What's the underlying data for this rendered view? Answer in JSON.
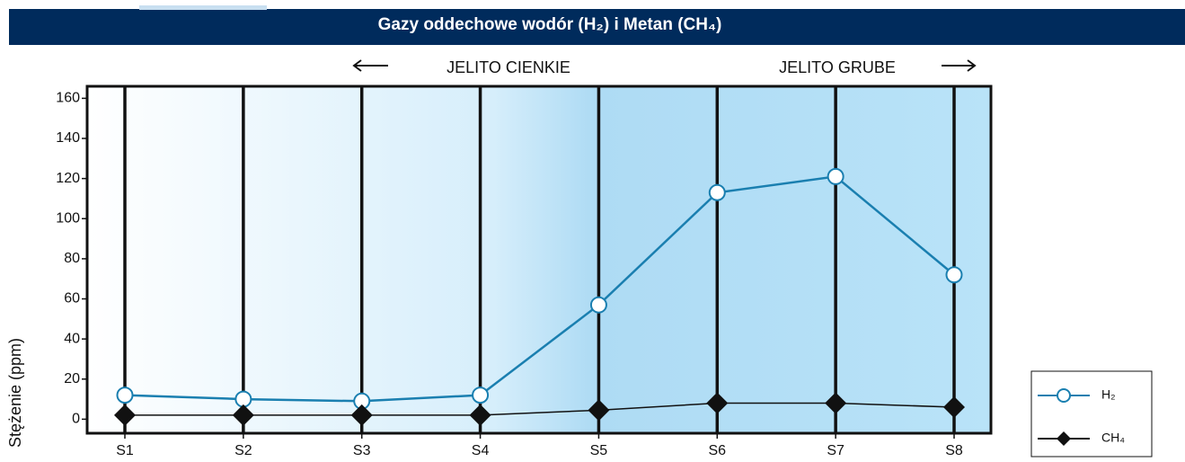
{
  "chart_data": {
    "type": "line",
    "title": "Gazy oddechowe wodór (H₂) i Metan (CH₄)",
    "y_label": "Stężenie (ppm)",
    "annotations": [
      "JELITO CIENKIE",
      "JELITO GRUBE"
    ],
    "categories": [
      "S1",
      "S2",
      "S3",
      "S4",
      "S5",
      "S6",
      "S7",
      "S8"
    ],
    "series": [
      {
        "name": "H₂",
        "color": "#1a7fb0",
        "values": [
          12,
          10,
          9,
          12,
          57,
          113,
          121,
          72
        ]
      },
      {
        "name": "CH₄",
        "color": "#111111",
        "values": [
          2,
          2,
          2,
          2,
          4.5,
          8,
          8,
          6
        ]
      }
    ],
    "ylim": [
      -7,
      166
    ],
    "yticks": [
      0,
      20,
      40,
      60,
      80,
      100,
      120,
      140,
      160
    ]
  }
}
